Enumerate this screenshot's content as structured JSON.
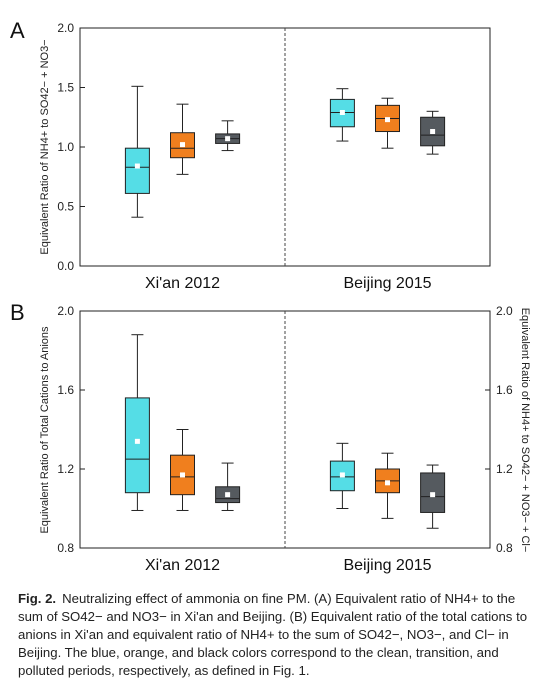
{
  "chart_data": [
    {
      "panel_label": "A",
      "type": "boxplot",
      "ylabel": "Equivalent Ratio of NH4+ to SO42− + NO3−",
      "ylim": [
        0.0,
        2.0
      ],
      "yticks": [
        "0.0",
        "0.5",
        "1.0",
        "1.5",
        "2.0"
      ],
      "groups": [
        "Xi'an 2012",
        "Beijing 2015"
      ],
      "series_colors": [
        "#55dde6",
        "#f07f1e",
        "#555a5f"
      ],
      "boxes": [
        {
          "group": 0,
          "series": 0,
          "whisker_low": 0.41,
          "q1": 0.61,
          "median": 0.83,
          "q3": 0.99,
          "whisker_high": 1.51,
          "mean": 0.84
        },
        {
          "group": 0,
          "series": 1,
          "whisker_low": 0.77,
          "q1": 0.91,
          "median": 0.99,
          "q3": 1.12,
          "whisker_high": 1.36,
          "mean": 1.02
        },
        {
          "group": 0,
          "series": 2,
          "whisker_low": 0.97,
          "q1": 1.03,
          "median": 1.07,
          "q3": 1.11,
          "whisker_high": 1.22,
          "mean": 1.07
        },
        {
          "group": 1,
          "series": 0,
          "whisker_low": 1.05,
          "q1": 1.17,
          "median": 1.29,
          "q3": 1.4,
          "whisker_high": 1.49,
          "mean": 1.29
        },
        {
          "group": 1,
          "series": 1,
          "whisker_low": 0.99,
          "q1": 1.13,
          "median": 1.24,
          "q3": 1.35,
          "whisker_high": 1.41,
          "mean": 1.23
        },
        {
          "group": 1,
          "series": 2,
          "whisker_low": 0.94,
          "q1": 1.01,
          "median": 1.1,
          "q3": 1.25,
          "whisker_high": 1.3,
          "mean": 1.13
        }
      ]
    },
    {
      "panel_label": "B",
      "type": "boxplot",
      "ylabel": "Equivalent Ratio of Total Cations to Anions",
      "ylabel_right": "Equivalent Ratio of NH4+ to SO42− + NO3− + Cl−",
      "ylim": [
        0.8,
        2.0
      ],
      "yticks": [
        "0.8",
        "1.2",
        "1.6",
        "2.0"
      ],
      "groups": [
        "Xi'an 2012",
        "Beijing 2015"
      ],
      "series_colors": [
        "#55dde6",
        "#f07f1e",
        "#555a5f"
      ],
      "boxes": [
        {
          "group": 0,
          "series": 0,
          "whisker_low": 0.99,
          "q1": 1.08,
          "median": 1.25,
          "q3": 1.56,
          "whisker_high": 1.88,
          "mean": 1.34
        },
        {
          "group": 0,
          "series": 1,
          "whisker_low": 0.99,
          "q1": 1.07,
          "median": 1.16,
          "q3": 1.27,
          "whisker_high": 1.4,
          "mean": 1.17
        },
        {
          "group": 0,
          "series": 2,
          "whisker_low": 0.99,
          "q1": 1.03,
          "median": 1.05,
          "q3": 1.11,
          "whisker_high": 1.23,
          "mean": 1.07
        },
        {
          "group": 1,
          "series": 0,
          "whisker_low": 1.0,
          "q1": 1.09,
          "median": 1.16,
          "q3": 1.24,
          "whisker_high": 1.33,
          "mean": 1.17
        },
        {
          "group": 1,
          "series": 1,
          "whisker_low": 0.95,
          "q1": 1.08,
          "median": 1.14,
          "q3": 1.2,
          "whisker_high": 1.28,
          "mean": 1.13
        },
        {
          "group": 1,
          "series": 2,
          "whisker_low": 0.9,
          "q1": 0.98,
          "median": 1.06,
          "q3": 1.18,
          "whisker_high": 1.22,
          "mean": 1.07
        }
      ]
    }
  ],
  "caption": {
    "label": "Fig. 2.",
    "text": "Neutralizing effect of ammonia on fine PM. (A) Equivalent ratio of NH4+ to the sum of SO42− and NO3− in Xi'an and Beijing. (B) Equivalent ratio of the total cations to anions in Xi'an and equivalent ratio of NH4+ to the sum of SO42−, NO3−, and Cl− in Beijing. The blue, orange, and black colors correspond to the clean, transition, and polluted periods, respectively, as defined in Fig. 1."
  }
}
